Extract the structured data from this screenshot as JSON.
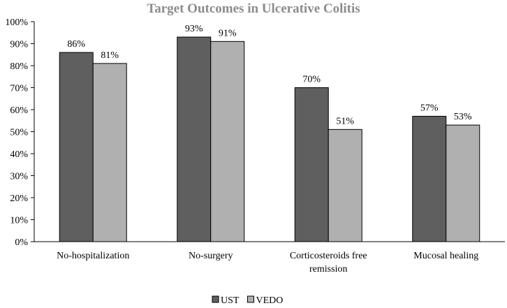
{
  "chart_data": {
    "type": "bar",
    "title": "Target Outcomes in Ulcerative Colitis",
    "categories": [
      [
        "No-hospitalization"
      ],
      [
        "No-surgery"
      ],
      [
        "Corticosteroids free",
        "remission"
      ],
      [
        "Mucosal healing"
      ]
    ],
    "series": [
      {
        "name": "UST",
        "values": [
          86,
          93,
          70,
          57
        ],
        "color": "#5f5f5f"
      },
      {
        "name": "VEDO",
        "values": [
          81,
          91,
          51,
          53
        ],
        "color": "#b0b0b0"
      }
    ],
    "data_labels": [
      [
        "86%",
        "93%",
        "70%",
        "57%"
      ],
      [
        "81%",
        "91%",
        "51%",
        "53%"
      ]
    ],
    "y_ticks": [
      0,
      10,
      20,
      30,
      40,
      50,
      60,
      70,
      80,
      90,
      100
    ],
    "y_tick_labels": [
      "0%",
      "10%",
      "20%",
      "30%",
      "40%",
      "50%",
      "60%",
      "70%",
      "80%",
      "90%",
      "100%"
    ],
    "ylim": [
      0,
      100
    ],
    "xlabel": "",
    "ylabel": "",
    "grid": false,
    "legend_position": "bottom-center",
    "bar_outline_color": "#000000",
    "axis_color": "#000000"
  }
}
